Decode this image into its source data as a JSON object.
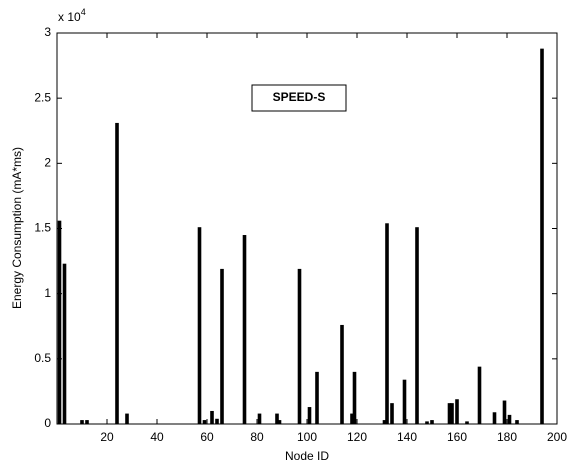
{
  "chart_data": {
    "type": "bar",
    "xlabel": "Node ID",
    "ylabel": "Energy Consumption (mA*ms)",
    "multiplier": {
      "base": "x 10",
      "exponent": "4"
    },
    "annotation": "SPEED-S",
    "color": "#000000",
    "x": [
      1,
      3,
      10,
      12,
      24,
      28,
      57,
      59,
      62,
      64,
      66,
      75,
      81,
      88,
      89,
      97,
      101,
      104,
      114,
      118,
      119,
      131,
      132,
      134,
      139,
      144,
      148,
      150,
      157,
      158,
      160,
      164,
      169,
      175,
      179,
      181,
      184,
      194
    ],
    "values": [
      1.56,
      1.23,
      0.03,
      0.03,
      2.31,
      0.08,
      1.51,
      0.03,
      0.1,
      0.04,
      1.19,
      1.45,
      0.08,
      0.08,
      0.03,
      1.19,
      0.13,
      0.4,
      0.76,
      0.08,
      0.4,
      0.03,
      1.54,
      0.16,
      0.34,
      1.51,
      0.02,
      0.03,
      0.16,
      0.16,
      0.19,
      0.02,
      0.44,
      0.09,
      0.18,
      0.07,
      0.03,
      2.88
    ],
    "xlim": [
      0,
      200
    ],
    "xticks": [
      20,
      40,
      60,
      80,
      100,
      120,
      140,
      160,
      180,
      200
    ],
    "ylim": [
      0,
      3
    ],
    "yticks": [
      0,
      0.5,
      1,
      1.5,
      2,
      2.5,
      3
    ]
  }
}
